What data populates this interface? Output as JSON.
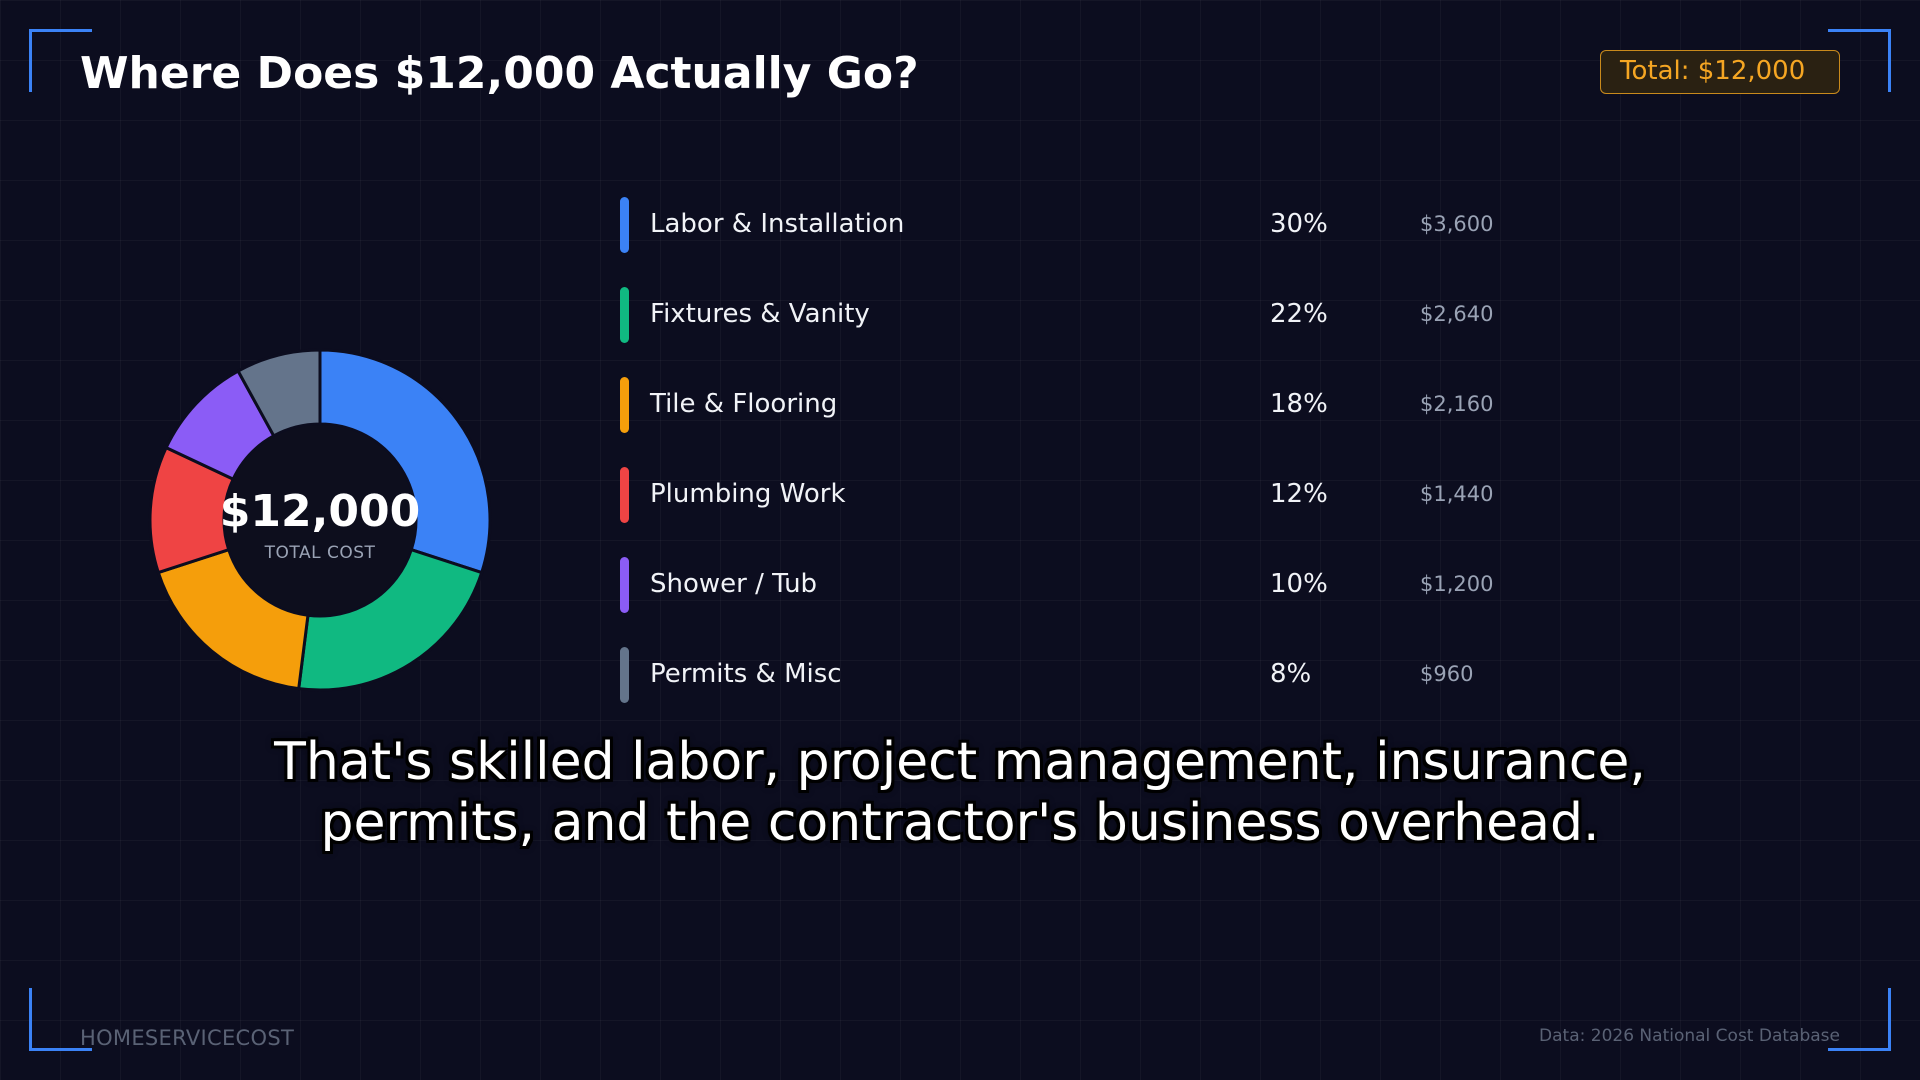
{
  "header": {
    "title": "Where Does $12,000 Actually Go?",
    "total_badge": "Total: $12,000"
  },
  "chart_data": {
    "type": "pie",
    "variant": "donut",
    "title": "",
    "center_value": "$12,000",
    "center_label": "TOTAL COST",
    "slices": [
      {
        "label": "Labor & Installation",
        "percent_label": "30%",
        "amount": "$3,600",
        "value": 30,
        "color": "#3b82f6"
      },
      {
        "label": "Fixtures & Vanity",
        "percent_label": "22%",
        "amount": "$2,640",
        "value": 22,
        "color": "#10b981"
      },
      {
        "label": "Tile & Flooring",
        "percent_label": "18%",
        "amount": "$2,160",
        "value": 18,
        "color": "#f59e0b"
      },
      {
        "label": "Plumbing Work",
        "percent_label": "12%",
        "amount": "$1,440",
        "value": 12,
        "color": "#ef4444"
      },
      {
        "label": "Shower / Tub",
        "percent_label": "10%",
        "amount": "$1,200",
        "value": 10,
        "color": "#8b5cf6"
      },
      {
        "label": "Permits & Misc",
        "percent_label": "8%",
        "amount": "$960",
        "value": 8,
        "color": "#64748b"
      }
    ],
    "legend_position": "right"
  },
  "caption": {
    "line1": "That's skilled labor, project management, insurance,",
    "line2": "permits, and the contractor's business overhead."
  },
  "footer": {
    "brand": "HOMESERVICECOST",
    "source": "Data: 2026 National Cost Database"
  },
  "colors": {
    "accent_frame": "#3b82f6",
    "badge_text": "#f5a623",
    "background": "#0c0d1f"
  }
}
